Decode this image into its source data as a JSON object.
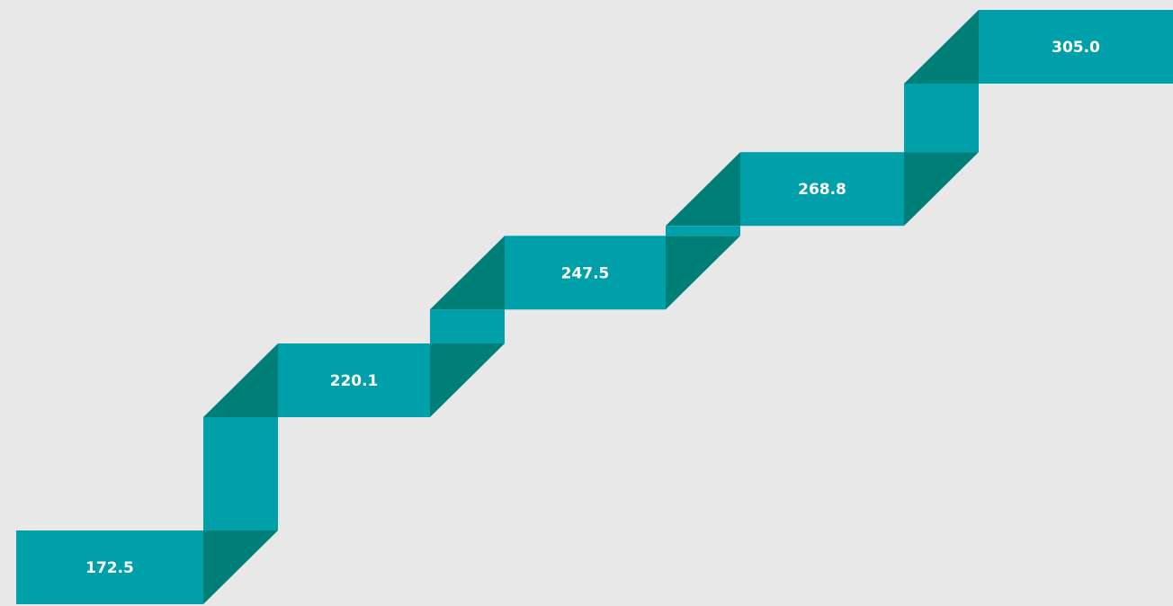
{
  "chart_data": {
    "type": "step-ribbon",
    "values": [
      172.5,
      220.1,
      247.5,
      268.8,
      305.0
    ],
    "value_labels": [
      "172.5",
      "220.1",
      "247.5",
      "268.8",
      "305.0"
    ],
    "color": "#00a0ab",
    "fold_color": "#007f78"
  }
}
